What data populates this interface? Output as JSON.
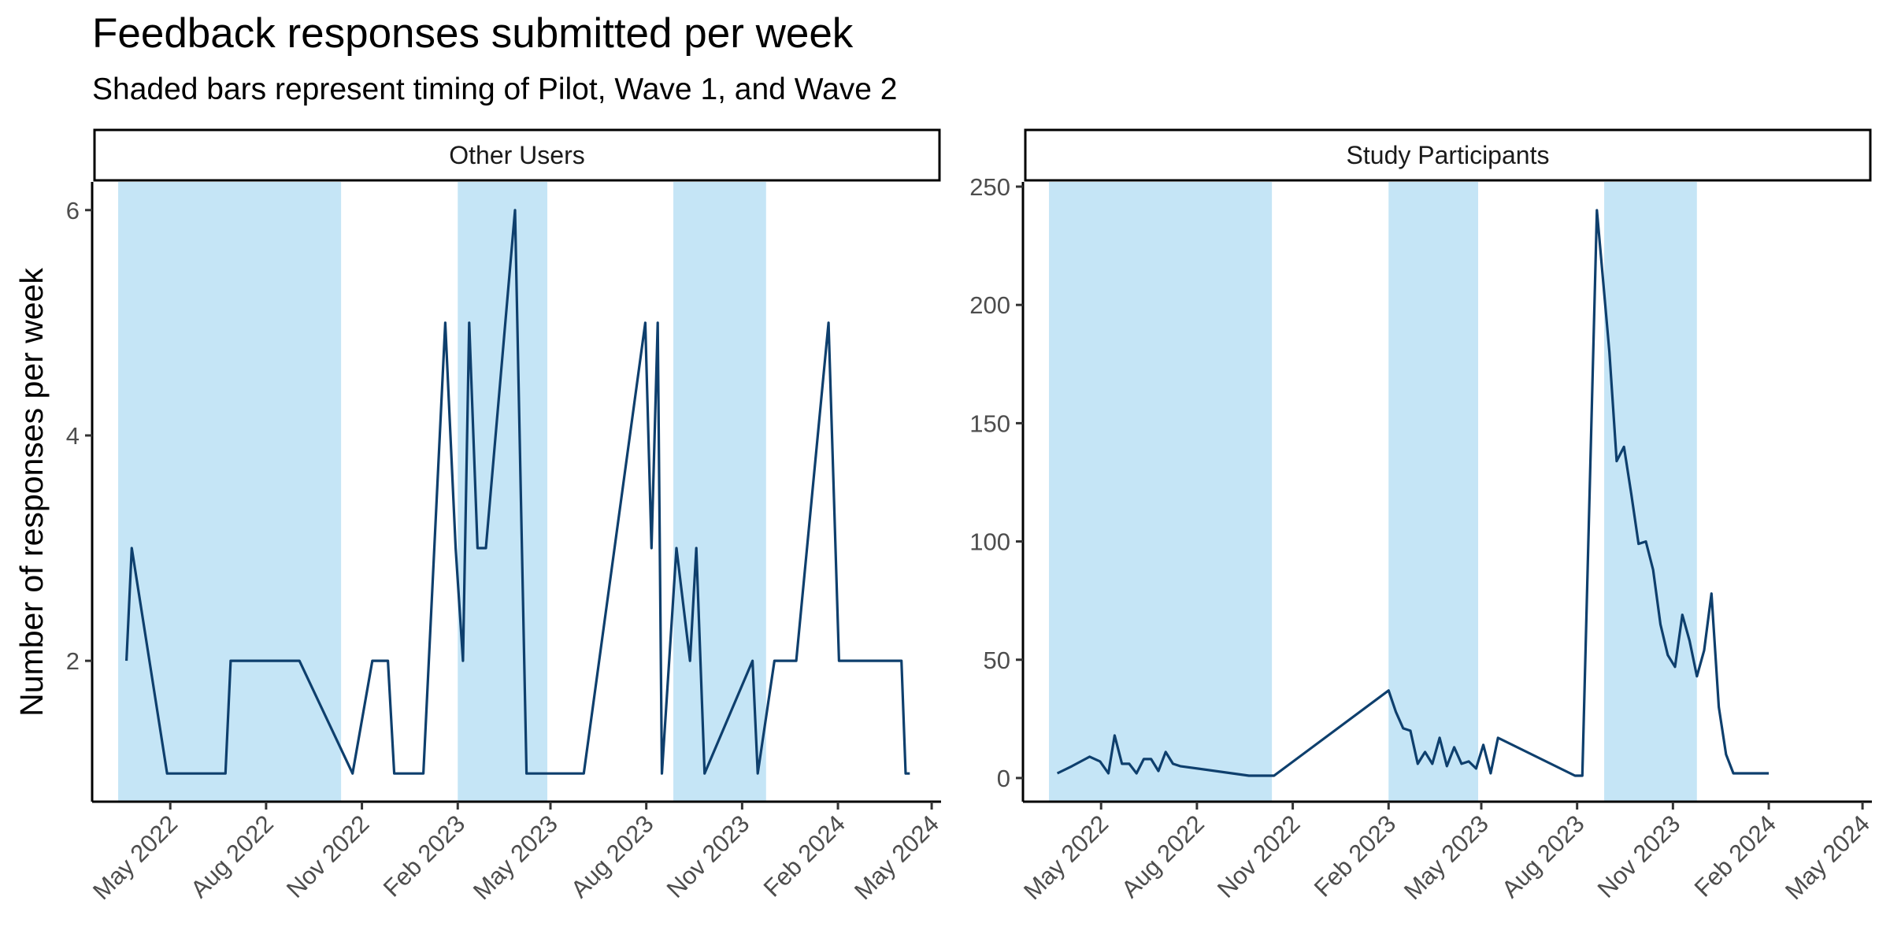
{
  "chart_data": {
    "type": "line",
    "title": "Feedback responses submitted per week",
    "subtitle": "Shaded bars represent timing of Pilot, Wave 1, and Wave 2",
    "ylabel": "Number of responses per week",
    "xlabel": "",
    "line_color": "#0e3f6d",
    "band_color": "#c5e5f6",
    "grid": false,
    "x_range": [
      "2022-02-15",
      "2024-05-10"
    ],
    "x_ticks": [
      "2022-05-01",
      "2022-08-01",
      "2022-11-01",
      "2023-02-01",
      "2023-05-01",
      "2023-08-01",
      "2023-11-01",
      "2024-02-01",
      "2024-05-01"
    ],
    "x_tick_labels": [
      "May 2022",
      "Aug 2022",
      "Nov 2022",
      "Feb 2023",
      "May 2023",
      "Aug 2023",
      "Nov 2023",
      "Feb 2024",
      "May 2024"
    ],
    "shaded_periods": [
      {
        "start": "2022-03-12",
        "end": "2022-10-12"
      },
      {
        "start": "2023-02-01",
        "end": "2023-04-28"
      },
      {
        "start": "2023-08-27",
        "end": "2023-11-24"
      }
    ],
    "panels": [
      {
        "strip": "Other Users",
        "ylim": [
          0.75,
          6.25
        ],
        "y_ticks": [
          2,
          4,
          6
        ],
        "y_tick_labels": [
          "2",
          "4",
          "6"
        ],
        "x": [
          "2022-03-20",
          "2022-03-25",
          "2022-04-28",
          "2022-06-23",
          "2022-06-28",
          "2022-09-02",
          "2022-10-23",
          "2022-11-11",
          "2022-11-26",
          "2022-12-02",
          "2022-12-30",
          "2023-01-20",
          "2023-01-30",
          "2023-02-06",
          "2023-02-12",
          "2023-02-20",
          "2023-02-28",
          "2023-03-28",
          "2023-04-08",
          "2023-04-30",
          "2023-05-01",
          "2023-06-02",
          "2023-07-31",
          "2023-08-06",
          "2023-08-12",
          "2023-08-16",
          "2023-08-30",
          "2023-09-12",
          "2023-09-18",
          "2023-09-26",
          "2023-11-11",
          "2023-11-16",
          "2023-12-02",
          "2023-12-23",
          "2024-01-23",
          "2024-02-02",
          "2024-04-02",
          "2024-04-06",
          "2024-04-10"
        ],
        "y": [
          2,
          3,
          1,
          1,
          2,
          2,
          1,
          2,
          2,
          1,
          1,
          5,
          3,
          2,
          5,
          3,
          3,
          6,
          1,
          1,
          1,
          1,
          5,
          3,
          5,
          1,
          3,
          2,
          3,
          1,
          2,
          1,
          2,
          2,
          5,
          2,
          2,
          1,
          1
        ]
      },
      {
        "strip": "Study Participants",
        "ylim": [
          -10,
          252
        ],
        "y_ticks": [
          0,
          50,
          100,
          150,
          200,
          250
        ],
        "y_tick_labels": [
          "0",
          "50",
          "100",
          "150",
          "200",
          "250"
        ],
        "x": [
          "2022-03-20",
          "2022-04-03",
          "2022-04-20",
          "2022-04-30",
          "2022-05-08",
          "2022-05-14",
          "2022-05-21",
          "2022-05-28",
          "2022-06-04",
          "2022-06-11",
          "2022-06-18",
          "2022-06-25",
          "2022-07-02",
          "2022-07-09",
          "2022-07-16",
          "2022-09-20",
          "2022-10-14",
          "2023-02-01",
          "2023-02-08",
          "2023-02-15",
          "2023-02-22",
          "2023-03-01",
          "2023-03-08",
          "2023-03-15",
          "2023-03-22",
          "2023-03-29",
          "2023-04-05",
          "2023-04-12",
          "2023-04-19",
          "2023-04-26",
          "2023-05-03",
          "2023-05-10",
          "2023-05-17",
          "2023-07-30",
          "2023-08-06",
          "2023-08-20",
          "2023-09-01",
          "2023-09-08",
          "2023-09-15",
          "2023-09-22",
          "2023-09-29",
          "2023-10-06",
          "2023-10-13",
          "2023-10-20",
          "2023-10-27",
          "2023-11-03",
          "2023-11-10",
          "2023-11-17",
          "2023-11-24",
          "2023-12-01",
          "2023-12-08",
          "2023-12-15",
          "2023-12-22",
          "2023-12-29",
          "2024-01-15",
          "2024-02-01"
        ],
        "y": [
          2,
          5,
          9,
          7,
          2,
          18,
          6,
          6,
          2,
          8,
          8,
          3,
          11,
          6,
          5,
          1,
          1,
          37,
          28,
          21,
          20,
          6,
          11,
          6,
          17,
          5,
          13,
          6,
          7,
          4,
          14,
          2,
          17,
          1,
          1,
          240,
          180,
          134,
          140,
          120,
          99,
          100,
          88,
          65,
          52,
          47,
          69,
          58,
          43,
          54,
          78,
          30,
          10,
          2,
          2,
          2
        ]
      }
    ]
  }
}
